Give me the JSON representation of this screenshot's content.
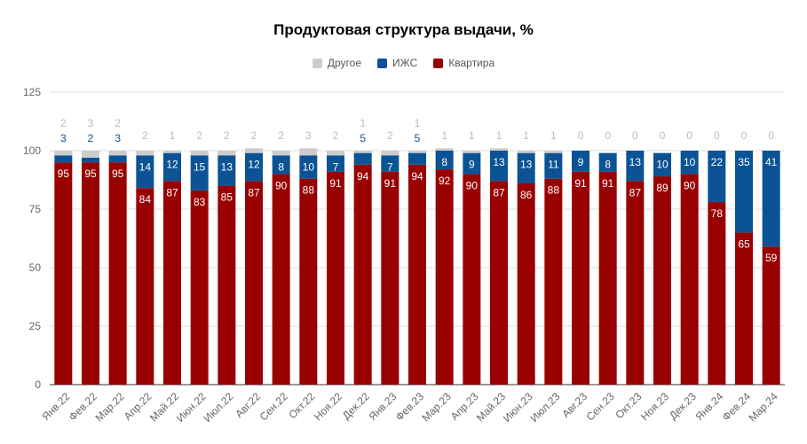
{
  "chart_data": {
    "type": "bar",
    "stacked": true,
    "title": "Продуктовая структура выдачи, %",
    "categories": [
      "Янв.22",
      "Фев.22",
      "Мар.22",
      "Апр.22",
      "Май.22",
      "Июн.22",
      "Июл.22",
      "Авг.22",
      "Сен.22",
      "Окт.22",
      "Ноя.22",
      "Дек.22",
      "Янв.23",
      "Фев.23",
      "Мар.23",
      "Апр.23",
      "Май.23",
      "Июн.23",
      "Июл.23",
      "Авг.23",
      "Сен.23",
      "Окт.23",
      "Ноя.23",
      "Дек.23",
      "Янв.24",
      "Фев.24",
      "Мар.24"
    ],
    "series": [
      {
        "name": "Квартира",
        "color": "#990000",
        "values": [
          95,
          95,
          95,
          84,
          87,
          83,
          85,
          87,
          90,
          88,
          91,
          94,
          91,
          94,
          92,
          90,
          87,
          86,
          88,
          91,
          91,
          87,
          89,
          90,
          78,
          65,
          59
        ]
      },
      {
        "name": "ИЖС",
        "color": "#0b5394",
        "values": [
          3,
          2,
          3,
          14,
          12,
          15,
          13,
          12,
          8,
          10,
          7,
          5,
          7,
          5,
          8,
          9,
          13,
          13,
          11,
          9,
          8,
          13,
          10,
          10,
          22,
          35,
          41
        ]
      },
      {
        "name": "Другое",
        "color": "#cccccc",
        "values": [
          2,
          3,
          2,
          2,
          1,
          2,
          2,
          2,
          2,
          3,
          2,
          1,
          2,
          1,
          1,
          1,
          1,
          1,
          1,
          0,
          0,
          0,
          0,
          0,
          0,
          0,
          0
        ]
      }
    ],
    "legend": [
      "Другое",
      "ИЖС",
      "Квартира"
    ],
    "yticks": [
      0,
      25,
      50,
      75,
      100,
      125
    ],
    "ylim": [
      0,
      125
    ],
    "grid": true,
    "legend_position": "top"
  }
}
